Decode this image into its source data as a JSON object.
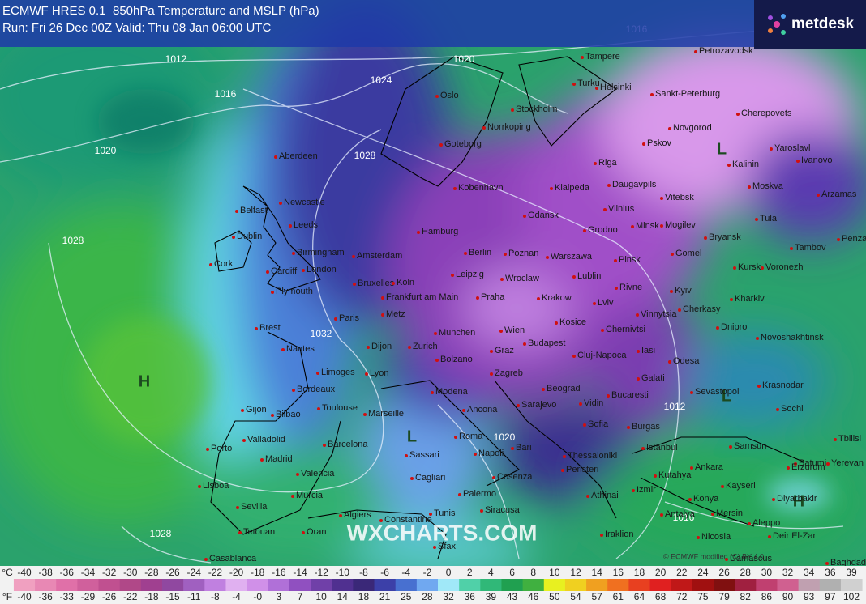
{
  "header": {
    "model": "ECMWF HRES 0.1",
    "title": "850hPa Temperature and MSLP (hPa)",
    "run": "Run: Fri 26 Dec 00Z Valid: Thu 08 Jan 06:00 UTC"
  },
  "logo": "metdesk",
  "map": {
    "watermark": "WXCHARTS.COM",
    "credit": "© ECMWF modified (C) BY 4.0",
    "pressure_labels": [
      "1012",
      "1016",
      "1020",
      "1028",
      "1028",
      "1032",
      "1020",
      "1016",
      "1012",
      "1020",
      "1028",
      "1016",
      "1024"
    ],
    "systems": [
      "H",
      "L",
      "L",
      "L",
      "H"
    ],
    "cities": [
      "Tampere",
      "Petrozavodsk",
      "Turku",
      "Helsinki",
      "Sankt-Peterburg",
      "Oslo",
      "Stockholm",
      "Norrkoping",
      "Cherepovets",
      "Novgorod",
      "Pskov",
      "Yaroslavl",
      "Ivanovo",
      "Kalinin",
      "Goteborg",
      "Riga",
      "Aberdeen",
      "Moskva",
      "Arzamas",
      "Klaipeda",
      "Daugavpils",
      "Vitebsk",
      "Kobenhavn",
      "Vilnius",
      "Newcastle",
      "Belfast",
      "Gdansk",
      "Minsk",
      "Mogilev",
      "Tula",
      "Leeds",
      "Hamburg",
      "Grodno",
      "Dublin",
      "Bryansk",
      "Penza",
      "Tambov",
      "Birmingham",
      "Berlin",
      "Poznan",
      "Warszawa",
      "Amsterdam",
      "Pinsk",
      "Gomel",
      "Cork",
      "London",
      "Cardiff",
      "Leipzig",
      "Lublin",
      "Kursk",
      "Voronezh",
      "Wroclaw",
      "Bruxelles",
      "Koln",
      "Rivne",
      "Kyiv",
      "Plymouth",
      "Frankfurt am Main",
      "Praha",
      "Krakow",
      "Lviv",
      "Kharkiv",
      "Vinnytsia",
      "Cherkasy",
      "Metz",
      "Paris",
      "Kosice",
      "Brest",
      "Munchen",
      "Wien",
      "Chernivtsi",
      "Dnipro",
      "Novoshakhtinsk",
      "Nantes",
      "Dijon",
      "Zurich",
      "Graz",
      "Budapest",
      "Cluj-Napoca",
      "Iasi",
      "Bolzano",
      "Odesa",
      "Limoges",
      "Lyon",
      "Zagreb",
      "Galati",
      "Sevastopol",
      "Krasnodar",
      "Bordeaux",
      "Modena",
      "Beograd",
      "Bucaresti",
      "Toulouse",
      "Marseille",
      "Ancona",
      "Sarajevo",
      "Vidin",
      "Sochi",
      "Gijon",
      "Bilbao",
      "Sofia",
      "Burgas",
      "Valladolid",
      "Barcelona",
      "Roma",
      "Bari",
      "Napoli",
      "Istanbul",
      "Samsun",
      "Batumi",
      "Tbilisi",
      "Porto",
      "Madrid",
      "Sassari",
      "Thessaloniki",
      "Yerevan",
      "Erzurum",
      "Ankara",
      "Valencia",
      "Kutahya",
      "Cosenza",
      "Cagliari",
      "Peristeri",
      "Lisboa",
      "Murcia",
      "Izmir",
      "Kayseri",
      "Konya",
      "Palermo",
      "Diyarbakir",
      "Sevilla",
      "Athinai",
      "Siracusa",
      "Antalya",
      "Mersin",
      "Algiers",
      "Constantine",
      "Tunis",
      "Oran",
      "Tetouan",
      "Iraklion",
      "Nicosia",
      "Aleppo",
      "Deir El-Zar",
      "Damascus",
      "Sfax",
      "Casablanca",
      "Baghdad"
    ]
  },
  "legend": {
    "celsius_unit": "°C",
    "celsius": [
      "-40",
      "-38",
      "-36",
      "-34",
      "-32",
      "-30",
      "-28",
      "-26",
      "-24",
      "-22",
      "-20",
      "-18",
      "-16",
      "-14",
      "-12",
      "-10",
      "-8",
      "-6",
      "-4",
      "-2",
      "0",
      "2",
      "4",
      "6",
      "8",
      "10",
      "12",
      "14",
      "16",
      "18",
      "20",
      "22",
      "24",
      "26",
      "28",
      "30",
      "32",
      "34",
      "36",
      "39"
    ],
    "fahrenheit_unit": "°F",
    "fahrenheit": [
      "-40",
      "-36",
      "-33",
      "-29",
      "-26",
      "-22",
      "-18",
      "-15",
      "-11",
      "-8",
      "-4",
      "-0",
      "3",
      "7",
      "10",
      "14",
      "18",
      "21",
      "25",
      "28",
      "32",
      "36",
      "39",
      "43",
      "46",
      "50",
      "54",
      "57",
      "61",
      "64",
      "68",
      "72",
      "75",
      "79",
      "82",
      "86",
      "90",
      "93",
      "97",
      "102"
    ],
    "colors": [
      "#f0a0c0",
      "#e888b4",
      "#e070a8",
      "#d0609c",
      "#c05090",
      "#b04888",
      "#a04090",
      "#9048a0",
      "#a060c0",
      "#c080e0",
      "#e0b0f0",
      "#d090e8",
      "#b070d8",
      "#9050c0",
      "#7040a8",
      "#503090",
      "#3a2878",
      "#3c40a8",
      "#4870d0",
      "#70a8f0",
      "#a0e8f8",
      "#50d0a8",
      "#30b878",
      "#20a050",
      "#40b040",
      "#e8f020",
      "#f0d020",
      "#f0a020",
      "#f07020",
      "#e84020",
      "#e02020",
      "#c01818",
      "#a01010",
      "#801010",
      "#a02040",
      "#c04070",
      "#d06090",
      "#c0a0b0",
      "#b0b0b0",
      "#d0d0d0"
    ]
  }
}
